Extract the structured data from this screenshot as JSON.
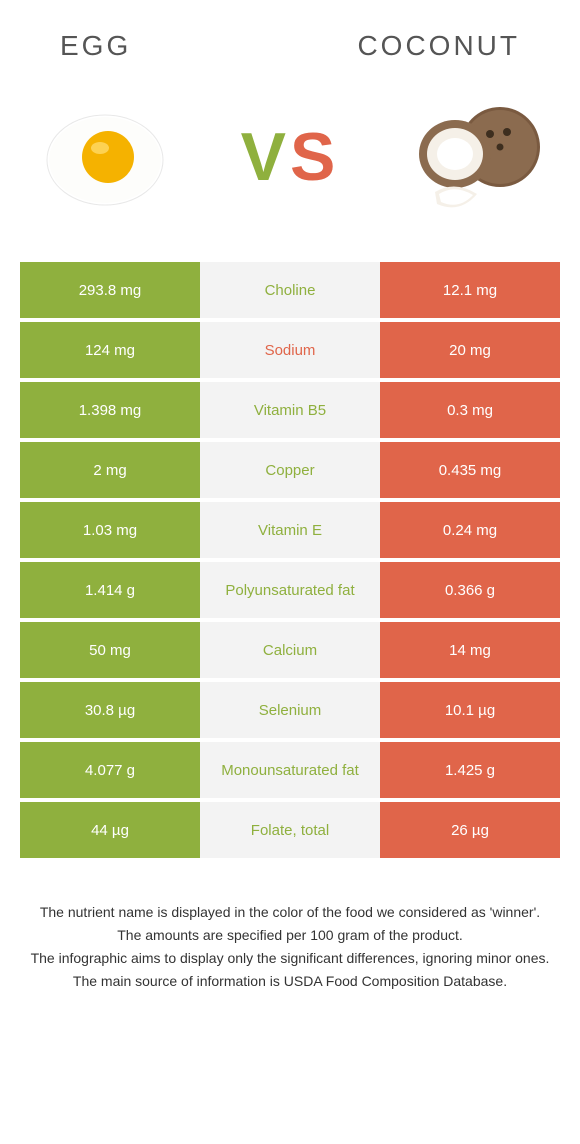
{
  "header": {
    "left_title": "EGG",
    "right_title": "COCONUT",
    "vs_v": "V",
    "vs_s": "S"
  },
  "colors": {
    "left": "#8fb03e",
    "right": "#e0654a",
    "mid_bg": "#f3f3f3",
    "text": "#333333",
    "title": "#555555"
  },
  "table": {
    "rows": [
      {
        "left": "293.8 mg",
        "name": "Choline",
        "right": "12.1 mg",
        "winner": "left"
      },
      {
        "left": "124 mg",
        "name": "Sodium",
        "right": "20 mg",
        "winner": "right"
      },
      {
        "left": "1.398 mg",
        "name": "Vitamin B5",
        "right": "0.3 mg",
        "winner": "left"
      },
      {
        "left": "2 mg",
        "name": "Copper",
        "right": "0.435 mg",
        "winner": "left"
      },
      {
        "left": "1.03 mg",
        "name": "Vitamin E",
        "right": "0.24 mg",
        "winner": "left"
      },
      {
        "left": "1.414 g",
        "name": "Polyunsaturated fat",
        "right": "0.366 g",
        "winner": "left"
      },
      {
        "left": "50 mg",
        "name": "Calcium",
        "right": "14 mg",
        "winner": "left"
      },
      {
        "left": "30.8 µg",
        "name": "Selenium",
        "right": "10.1 µg",
        "winner": "left"
      },
      {
        "left": "4.077 g",
        "name": "Monounsaturated fat",
        "right": "1.425 g",
        "winner": "left"
      },
      {
        "left": "44 µg",
        "name": "Folate, total",
        "right": "26 µg",
        "winner": "left"
      }
    ]
  },
  "footer": {
    "l1": "The nutrient name is displayed in the color of the food we considered as 'winner'.",
    "l2": "The amounts are specified per 100 gram of the product.",
    "l3": "The infographic aims to display only the significant differences, ignoring minor ones.",
    "l4": "The main source of information is USDA Food Composition Database."
  }
}
